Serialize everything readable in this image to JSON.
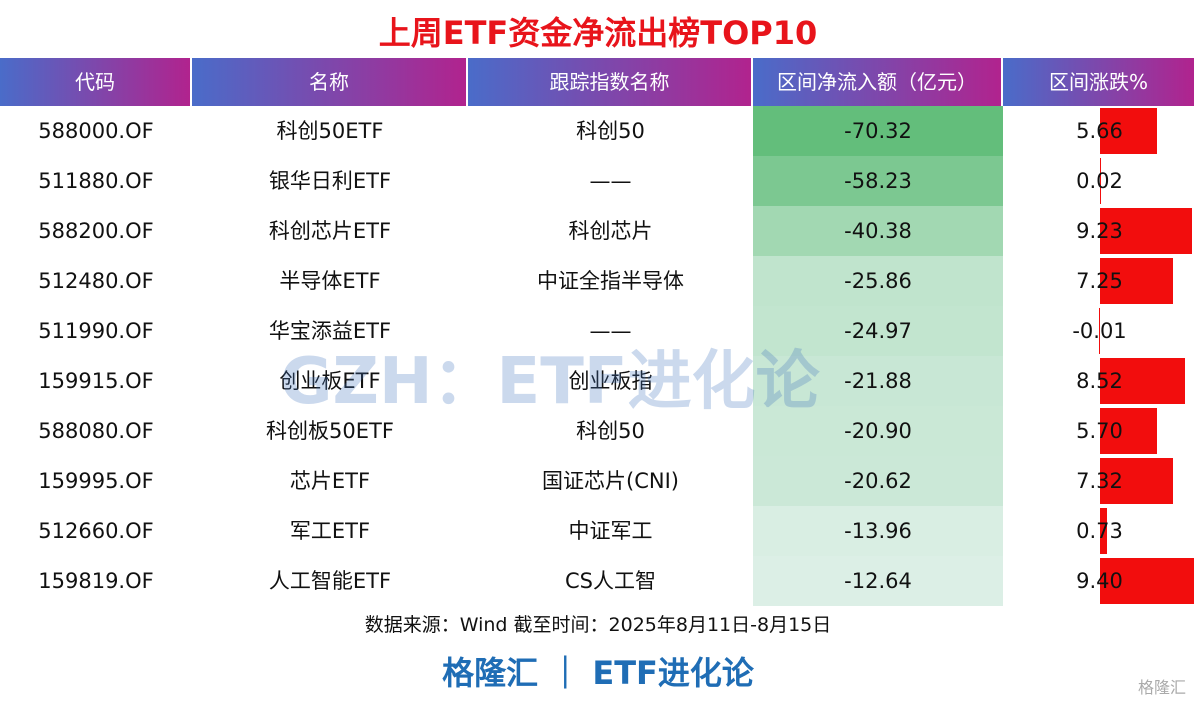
{
  "title": "上周ETF资金净流出榜TOP10",
  "table": {
    "headers": [
      "代码",
      "名称",
      "跟踪指数名称",
      "区间净流入额（亿元）",
      "区间涨跌%"
    ],
    "rows": [
      [
        "588000.OF",
        "科创50ETF",
        "科创50",
        "-70.32",
        "5.66"
      ],
      [
        "511880.OF",
        "银华日利ETF",
        "——",
        "-58.23",
        "0.02"
      ],
      [
        "588200.OF",
        "科创芯片ETF",
        "科创芯片",
        "-40.38",
        "9.23"
      ],
      [
        "512480.OF",
        "半导体ETF",
        "中证全指半导体",
        "-25.86",
        "7.25"
      ],
      [
        "511990.OF",
        "华宝添益ETF",
        "——",
        "-24.97",
        "-0.01"
      ],
      [
        "159915.OF",
        "创业板ETF",
        "创业板指",
        "-21.88",
        "8.52"
      ],
      [
        "588080.OF",
        "科创板50ETF",
        "科创50",
        "-20.90",
        "5.70"
      ],
      [
        "159995.OF",
        "芯片ETF",
        "国证芯片(CNI)",
        "-20.62",
        "7.32"
      ],
      [
        "512660.OF",
        "军工ETF",
        "中证军工",
        "-13.96",
        "0.73"
      ],
      [
        "159819.OF",
        "人工智能ETF",
        "CS人工智",
        "-12.64",
        "9.40"
      ]
    ]
  },
  "source": "数据来源：Wind 截至时间：2025年8月11日-8月15日",
  "brand": "格隆汇 ｜ ETF进化论",
  "watermark": "GZH：ETF进化论",
  "logo": "格隆汇"
}
